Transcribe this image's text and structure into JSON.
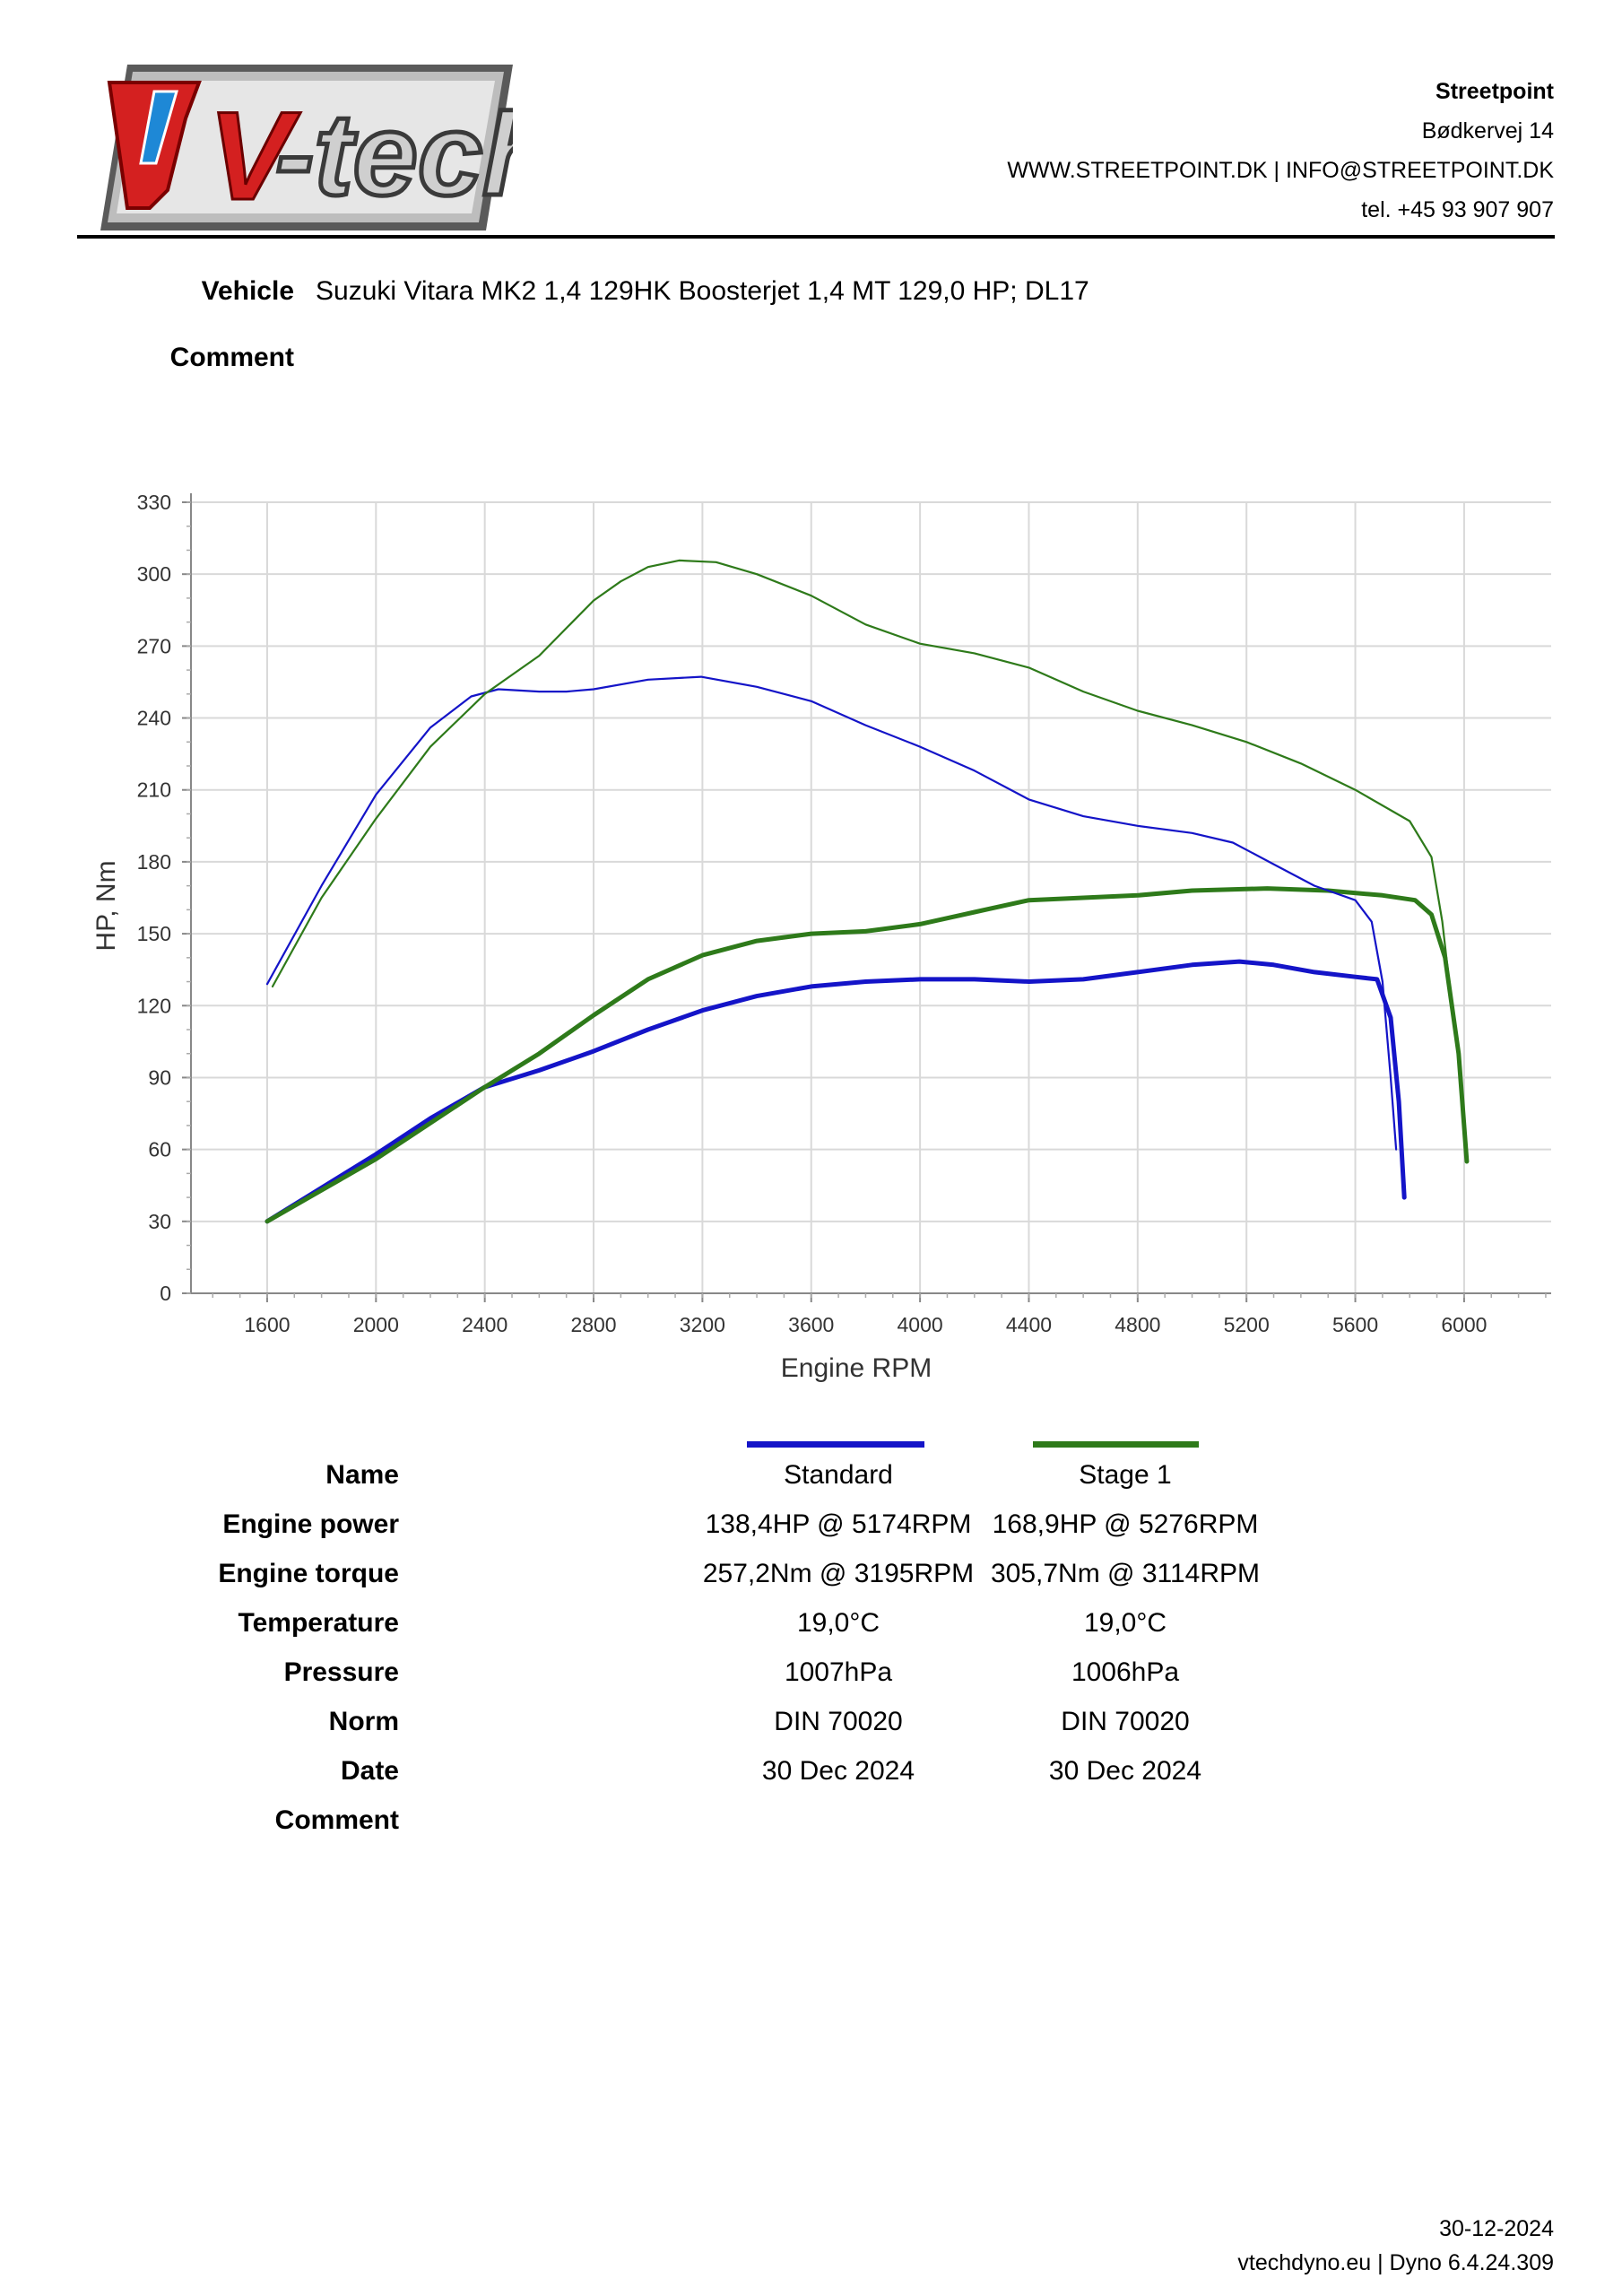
{
  "header": {
    "logo_text": "V-tech",
    "company_name": "Streetpoint",
    "address": "Bødkervej 14",
    "web_email": "WWW.STREETPOINT.DK | INFO@STREETPOINT.DK",
    "phone": "tel. +45 93 907 907"
  },
  "vehicle": {
    "label": "Vehicle",
    "value": "Suzuki Vitara MK2 1,4 129HK Boosterjet 1,4 MT 129,0 HP; DL17",
    "comment_label": "Comment"
  },
  "colors": {
    "standard": "#1414c8",
    "stage1": "#2e7a1a",
    "grid": "#d9d9d9"
  },
  "chart_data": {
    "type": "line",
    "title": "",
    "xlabel": "Engine RPM",
    "ylabel": "HP, Nm",
    "xlim": [
      1320,
      6320
    ],
    "ylim": [
      0,
      330
    ],
    "xticks": [
      1600,
      2000,
      2400,
      2800,
      3200,
      3600,
      4000,
      4400,
      4800,
      5200,
      5600,
      6000
    ],
    "yticks": [
      0,
      30,
      60,
      90,
      120,
      150,
      180,
      210,
      240,
      270,
      300,
      330
    ],
    "grid": true,
    "series": [
      {
        "name": "Standard",
        "quantity": "power",
        "color": "#1414c8",
        "x": [
          1600,
          1800,
          2000,
          2200,
          2400,
          2600,
          2800,
          3000,
          3200,
          3400,
          3600,
          3800,
          4000,
          4200,
          4400,
          4600,
          4800,
          5000,
          5174,
          5300,
          5450,
          5600,
          5680,
          5730,
          5760,
          5780
        ],
        "y": [
          30,
          44,
          58,
          73,
          86,
          93,
          101,
          110,
          118,
          124,
          128,
          130,
          131,
          131,
          130,
          131,
          134,
          137,
          138.4,
          137,
          134,
          132,
          131,
          115,
          80,
          40
        ]
      },
      {
        "name": "Stage 1",
        "quantity": "power",
        "color": "#2e7a1a",
        "x": [
          1600,
          1800,
          2000,
          2200,
          2400,
          2600,
          2800,
          3000,
          3200,
          3400,
          3600,
          3800,
          4000,
          4200,
          4400,
          4600,
          4800,
          5000,
          5276,
          5500,
          5700,
          5820,
          5880,
          5930,
          5980,
          6010
        ],
        "y": [
          30,
          43,
          56,
          71,
          86,
          100,
          116,
          131,
          141,
          147,
          150,
          151,
          154,
          159,
          164,
          165,
          166,
          168,
          168.9,
          168,
          166,
          164,
          158,
          140,
          100,
          55
        ]
      },
      {
        "name": "Standard",
        "quantity": "torque",
        "color": "#1414c8",
        "x": [
          1600,
          1800,
          2000,
          2200,
          2350,
          2450,
          2600,
          2700,
          2800,
          3000,
          3195,
          3400,
          3600,
          3800,
          4000,
          4200,
          4400,
          4600,
          4800,
          5000,
          5150,
          5300,
          5450,
          5600,
          5660,
          5700,
          5730,
          5750
        ],
        "y": [
          129,
          170,
          208,
          236,
          249,
          252,
          251,
          251,
          252,
          256,
          257.2,
          253,
          247,
          237,
          228,
          218,
          206,
          199,
          195,
          192,
          188,
          179,
          170,
          164,
          155,
          130,
          90,
          60
        ]
      },
      {
        "name": "Stage 1",
        "quantity": "torque",
        "color": "#2e7a1a",
        "x": [
          1620,
          1800,
          2000,
          2200,
          2400,
          2600,
          2800,
          2900,
          3000,
          3114,
          3250,
          3400,
          3600,
          3800,
          4000,
          4200,
          4400,
          4600,
          4800,
          5000,
          5200,
          5400,
          5600,
          5800,
          5880,
          5920,
          5960,
          5990
        ],
        "y": [
          128,
          165,
          198,
          228,
          250,
          266,
          289,
          297,
          303,
          305.7,
          305,
          300,
          291,
          279,
          271,
          267,
          261,
          251,
          243,
          237,
          230,
          221,
          210,
          197,
          182,
          155,
          115,
          90
        ]
      }
    ]
  },
  "table": {
    "rows": [
      {
        "label": "Name",
        "standard": "Standard",
        "stage1": "Stage 1"
      },
      {
        "label": "Engine power",
        "standard": "138,4HP @ 5174RPM",
        "stage1": "168,9HP @ 5276RPM"
      },
      {
        "label": "Engine torque",
        "standard": "257,2Nm @ 3195RPM",
        "stage1": "305,7Nm @ 3114RPM"
      },
      {
        "label": "Temperature",
        "standard": "19,0°C",
        "stage1": "19,0°C"
      },
      {
        "label": "Pressure",
        "standard": "1007hPa",
        "stage1": "1006hPa"
      },
      {
        "label": "Norm",
        "standard": "DIN 70020",
        "stage1": "DIN 70020"
      },
      {
        "label": "Date",
        "standard": "30 Dec 2024",
        "stage1": "30 Dec 2024"
      },
      {
        "label": "Comment",
        "standard": "",
        "stage1": ""
      }
    ]
  },
  "footer": {
    "date": "30-12-2024",
    "software": "vtechdyno.eu | Dyno 6.4.24.309"
  }
}
